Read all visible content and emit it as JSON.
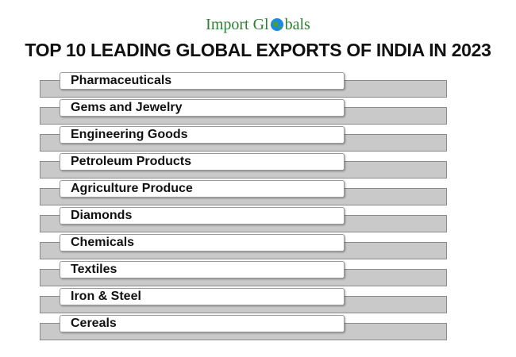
{
  "header": {
    "logo": [
      "Import Gl",
      "bals"
    ],
    "title": "TOP 10 LEADING GLOBAL EXPORTS OF INDIA IN 2023"
  },
  "items": [
    "Pharmaceuticals",
    "Gems and Jewelry",
    "Engineering Goods",
    "Petroleum Products",
    "Agriculture Produce",
    "Diamonds",
    "Chemicals",
    "Textiles",
    "Iron & Steel",
    "Cereals"
  ]
}
